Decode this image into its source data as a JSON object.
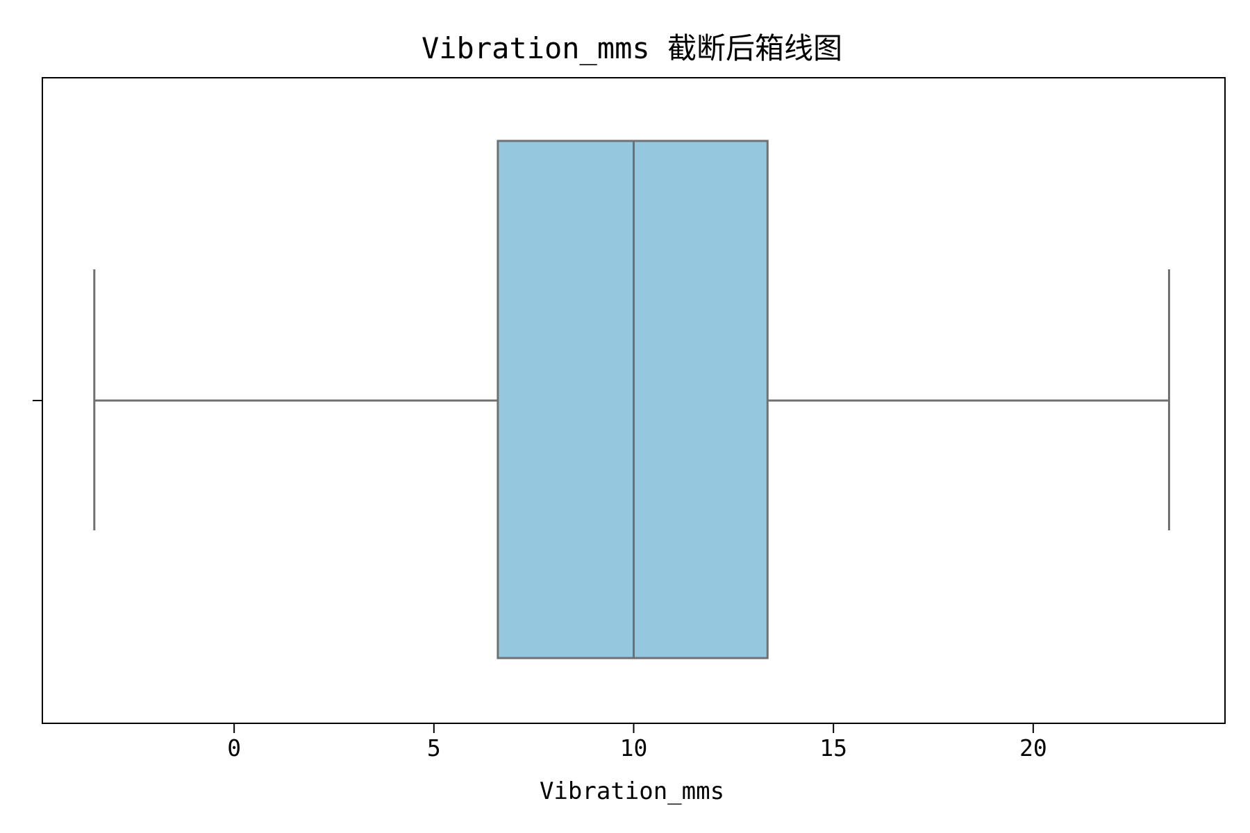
{
  "chart_data": {
    "type": "box",
    "title": "Vibration_mms 截断后箱线图",
    "xlabel": "Vibration_mms",
    "ylabel": "",
    "orientation": "horizontal",
    "xlim": [
      -4.8,
      24.8
    ],
    "x_ticks": [
      0,
      5,
      10,
      15,
      20
    ],
    "x_tick_labels": [
      "0",
      "5",
      "10",
      "15",
      "20"
    ],
    "grid": false,
    "box": {
      "whisker_low": -3.5,
      "q1": 6.6,
      "median": 10.0,
      "q3": 13.35,
      "whisker_high": 23.4
    },
    "colors": {
      "box_fill": "#95c8df",
      "box_edge": "#707070",
      "frame": "#000000"
    }
  }
}
